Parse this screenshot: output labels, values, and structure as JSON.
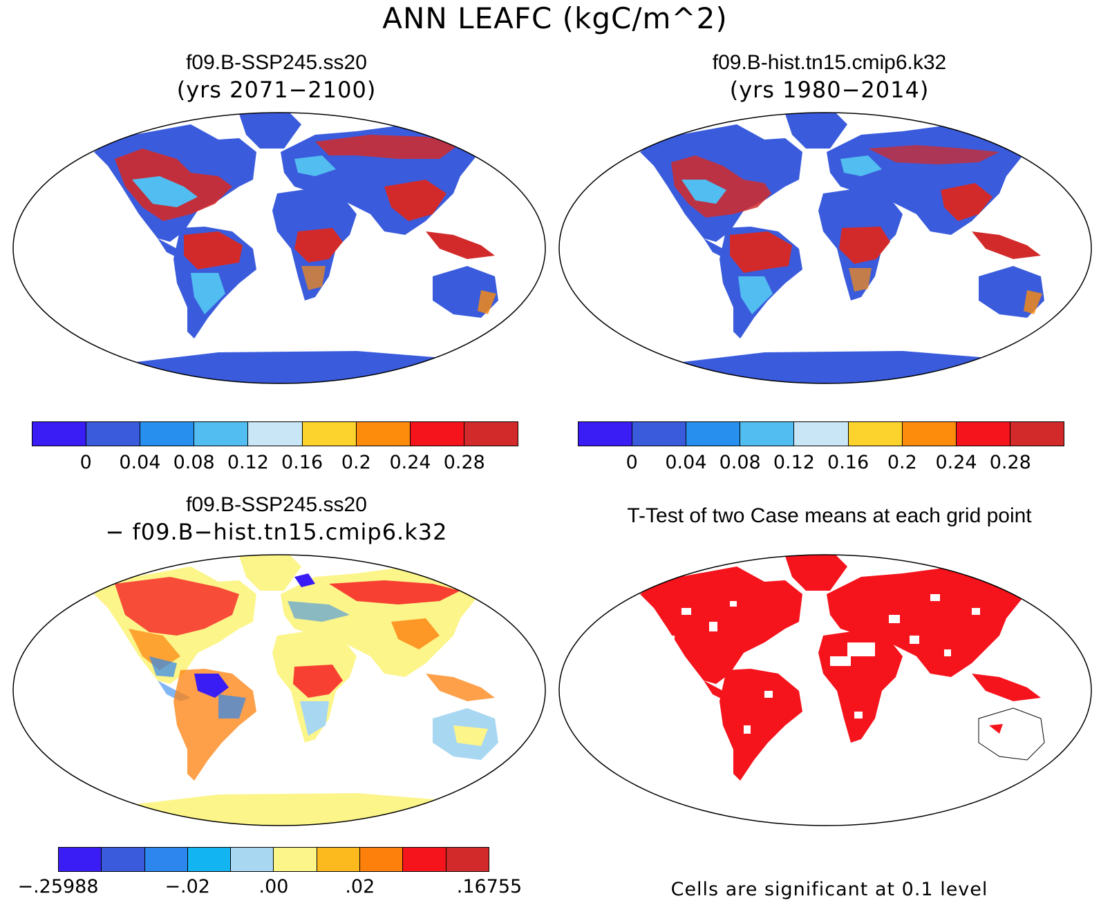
{
  "title": "ANN LEAFC (kgC/m^2)",
  "panels": {
    "top_left": {
      "line1": "f09.B-SSP245.ss20",
      "line2": "(yrs 2071−2100)"
    },
    "top_right": {
      "line1": "f09.B-hist.tn15.cmip6.k32",
      "line2": "(yrs 1980−2014)"
    },
    "bottom_left": {
      "line1": "f09.B-SSP245.ss20",
      "line2": "− f09.B−hist.tn15.cmip6.k32"
    },
    "bottom_right": {
      "line1": "T-Test of two Case means at each grid point"
    }
  },
  "colorbars": {
    "abs": {
      "colors": [
        "#3a1cf5",
        "#3a5cdc",
        "#2790ef",
        "#52bdf0",
        "#c8e6f6",
        "#fcd22c",
        "#fd8b0c",
        "#f5131c",
        "#d22a2a"
      ],
      "labels": [
        "0",
        "0.04",
        "0.08",
        "0.12",
        "0.16",
        "0.2",
        "0.24",
        "0.28"
      ]
    },
    "diff": {
      "colors": [
        "#3a1cf5",
        "#3a5cdc",
        "#2d86ee",
        "#12b4f2",
        "#a8d7f2",
        "#fcf58a",
        "#fcba1e",
        "#fd800c",
        "#f5131c",
        "#d22a2a"
      ],
      "labels": [
        "−.25988",
        "−.02",
        ".00",
        ".02",
        ".16755"
      ]
    }
  },
  "ttest_note": "Cells are significant at 0.1 level",
  "map_colors": {
    "ocean": "#ffffff",
    "land_low": "#3a5cdc",
    "land_mid": "#52bdf0",
    "land_high": "#d22a2a",
    "diff_base": "#fcf58a",
    "signif": "#f5131c"
  }
}
